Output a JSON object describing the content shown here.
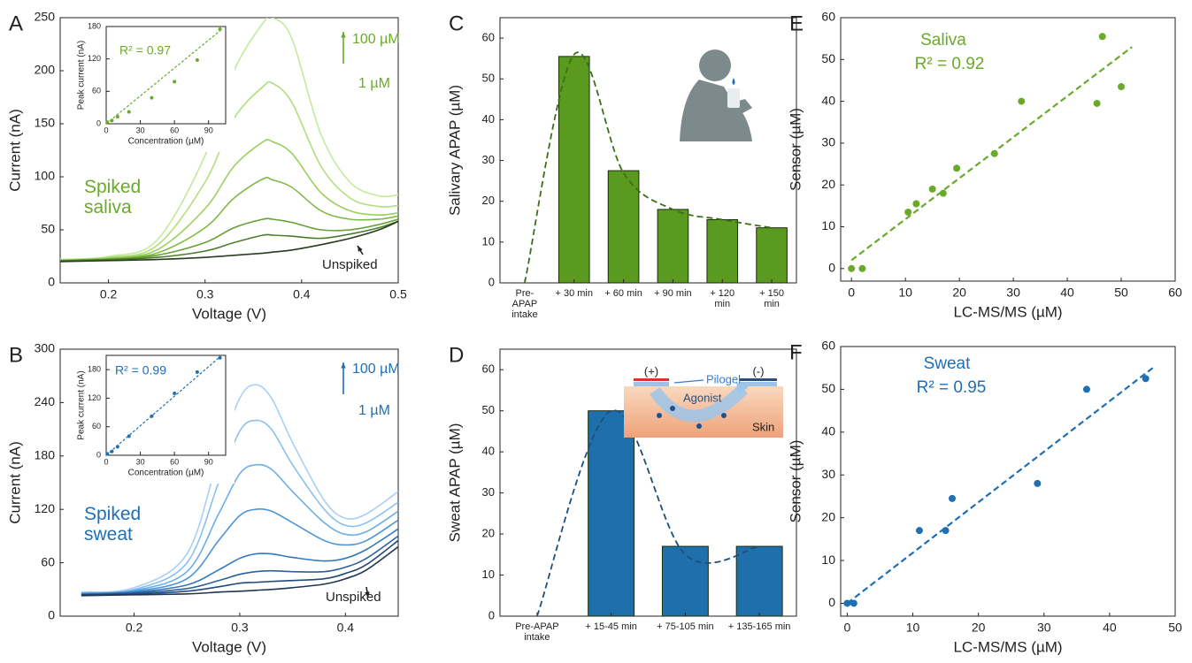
{
  "chart_data": [
    {
      "panel": "A",
      "type": "line",
      "xlabel": "Voltage (V)",
      "ylabel": "Current (nA)",
      "xlim": [
        0.15,
        0.5
      ],
      "ylim": [
        0,
        250
      ],
      "xticks": [
        0.2,
        0.3,
        0.4,
        0.5
      ],
      "yticks": [
        0,
        50,
        100,
        150,
        200,
        250
      ],
      "x": [
        0.15,
        0.2,
        0.25,
        0.3,
        0.33,
        0.36,
        0.37,
        0.39,
        0.42,
        0.45,
        0.48,
        0.5
      ],
      "series": [
        {
          "color": "#c6e89c",
          "values": [
            22,
            25,
            40,
            120,
            200,
            245,
            250,
            230,
            140,
            95,
            82,
            83
          ]
        },
        {
          "color": "#b2dd7c",
          "values": [
            22,
            24,
            35,
            95,
            155,
            185,
            188,
            170,
            110,
            80,
            72,
            73
          ]
        },
        {
          "color": "#9bcf5f",
          "values": [
            21,
            23,
            31,
            70,
            110,
            133,
            133,
            122,
            85,
            68,
            64,
            66
          ]
        },
        {
          "color": "#80ba45",
          "values": [
            21,
            23,
            28,
            52,
            80,
            98,
            97,
            90,
            68,
            60,
            60,
            63
          ]
        },
        {
          "color": "#66a036",
          "values": [
            21,
            22,
            26,
            38,
            52,
            60,
            60,
            57,
            50,
            50,
            55,
            60
          ]
        },
        {
          "color": "#4a7c2c",
          "values": [
            21,
            22,
            24,
            30,
            38,
            45,
            45,
            44,
            42,
            46,
            52,
            58
          ]
        },
        {
          "color": "#283c1e",
          "values": [
            20,
            21,
            22,
            24,
            26,
            28,
            29,
            31,
            36,
            42,
            50,
            58
          ]
        }
      ],
      "annotations": [
        "Spiked saliva",
        "100 µM",
        "1 µM",
        "Unspiked"
      ]
    },
    {
      "type": "scatter",
      "xlabel": "Concentration (µM)",
      "ylabel": "Peak current (nA)",
      "xlim": [
        0,
        105
      ],
      "ylim": [
        0,
        180
      ],
      "xticks": [
        0,
        30,
        60,
        90
      ],
      "yticks": [
        0,
        60,
        120,
        180
      ],
      "color": "#6aaa2a",
      "x": [
        1,
        5,
        10,
        20,
        40,
        60,
        80,
        100
      ],
      "values": [
        3,
        6,
        13,
        22,
        48,
        78,
        118,
        175
      ],
      "fit": {
        "x": [
          0,
          100
        ],
        "y": [
          0,
          172
        ]
      },
      "annotations": [
        "R² = 0.97"
      ]
    },
    {
      "panel": "B",
      "type": "line",
      "xlabel": "Voltage (V)",
      "ylabel": "Current (nA)",
      "xlim": [
        0.13,
        0.45
      ],
      "ylim": [
        0,
        300
      ],
      "xticks": [
        0.2,
        0.3,
        0.4
      ],
      "yticks": [
        0,
        60,
        120,
        180,
        240,
        300
      ],
      "x": [
        0.15,
        0.2,
        0.25,
        0.28,
        0.3,
        0.315,
        0.33,
        0.35,
        0.38,
        0.4,
        0.42,
        0.45
      ],
      "series": [
        {
          "color": "#a8cff5",
          "values": [
            27,
            32,
            70,
            180,
            245,
            260,
            245,
            195,
            130,
            110,
            115,
            140
          ]
        },
        {
          "color": "#8ac0f0",
          "values": [
            26,
            30,
            60,
            150,
            208,
            220,
            210,
            170,
            120,
            102,
            105,
            128
          ]
        },
        {
          "color": "#6aaeea",
          "values": [
            26,
            29,
            50,
            115,
            160,
            170,
            165,
            140,
            105,
            92,
            95,
            118
          ]
        },
        {
          "color": "#4c95d8",
          "values": [
            25,
            28,
            42,
            85,
            113,
            120,
            118,
            105,
            85,
            80,
            85,
            108
          ]
        },
        {
          "color": "#3478bc",
          "values": [
            25,
            27,
            35,
            52,
            65,
            70,
            70,
            66,
            62,
            65,
            75,
            98
          ]
        },
        {
          "color": "#2a5f9c",
          "values": [
            24,
            26,
            31,
            40,
            47,
            50,
            51,
            50,
            50,
            55,
            65,
            90
          ]
        },
        {
          "color": "#23497a",
          "values": [
            24,
            25,
            28,
            33,
            37,
            38,
            39,
            40,
            42,
            48,
            58,
            85
          ]
        },
        {
          "color": "#1f3550",
          "values": [
            23,
            24,
            25,
            27,
            28,
            29,
            30,
            32,
            36,
            42,
            52,
            78
          ]
        }
      ],
      "annotations": [
        "Spiked sweat",
        "100 µM",
        "1 µM",
        "Unspiked"
      ]
    },
    {
      "type": "scatter",
      "xlabel": "Concentration (µM)",
      "ylabel": "Peak current (nA)",
      "xlim": [
        0,
        105
      ],
      "ylim": [
        0,
        210
      ],
      "xticks": [
        0,
        30,
        60,
        90
      ],
      "yticks": [
        0,
        60,
        120,
        180
      ],
      "color": "#1f6fb4",
      "x": [
        1,
        5,
        10,
        20,
        40,
        60,
        80,
        100
      ],
      "values": [
        3,
        8,
        18,
        40,
        82,
        130,
        175,
        205
      ],
      "fit": {
        "x": [
          0,
          100
        ],
        "y": [
          0,
          207
        ]
      },
      "annotations": [
        "R² = 0.99"
      ]
    },
    {
      "panel": "C",
      "type": "bar",
      "ylabel": "Salivary APAP (µM)",
      "ylim": [
        0,
        65
      ],
      "yticks": [
        0,
        10,
        20,
        30,
        40,
        50,
        60
      ],
      "categories": [
        "Pre-APAP intake",
        "+ 30 min",
        "+ 60 min",
        "+ 90 min",
        "+ 120 min",
        "+ 150 min"
      ],
      "values": [
        0,
        55.5,
        27.5,
        18,
        15.5,
        13.5
      ],
      "color": "#5a9a1e",
      "trend": [
        0,
        56,
        27,
        18,
        15.5,
        13.5
      ]
    },
    {
      "panel": "D",
      "type": "bar",
      "ylabel": "Sweat APAP (µM)",
      "ylim": [
        0,
        65
      ],
      "yticks": [
        0,
        10,
        20,
        30,
        40,
        50,
        60
      ],
      "categories": [
        "Pre-APAP intake",
        "+ 15-45 min",
        "+ 75-105 min",
        "+ 135-165 min"
      ],
      "values": [
        0,
        50,
        17,
        17
      ],
      "color": "#1f6fad",
      "trend": [
        0,
        50,
        15,
        17
      ],
      "diagram": {
        "plus": "(+)",
        "minus": "(-)",
        "gel": "Pilogel",
        "agonist": "Agonist",
        "skin": "Skin"
      }
    },
    {
      "panel": "E",
      "type": "scatter",
      "xlabel": "LC-MS/MS (µM)",
      "ylabel": "Sensor (µM)",
      "xlim": [
        -2,
        60
      ],
      "ylim": [
        -3,
        60
      ],
      "xticks": [
        0,
        10,
        20,
        30,
        40,
        50,
        60
      ],
      "yticks": [
        0,
        10,
        20,
        30,
        40,
        50,
        60
      ],
      "color": "#6aaa2a",
      "x": [
        0,
        2,
        10.5,
        12,
        15,
        17,
        19.5,
        26.5,
        31.5,
        45.5,
        46.5,
        50
      ],
      "values": [
        0,
        0,
        13.5,
        15.5,
        19,
        18,
        24,
        27.5,
        40,
        39.5,
        55.5,
        43.5
      ],
      "fit": {
        "x": [
          0,
          52
        ],
        "y": [
          2,
          53
        ]
      },
      "annotations": [
        "Saliva",
        "R² = 0.92"
      ]
    },
    {
      "panel": "F",
      "type": "scatter",
      "xlabel": "LC-MS/MS (µM)",
      "ylabel": "Sensor (µM)",
      "xlim": [
        -1,
        50
      ],
      "ylim": [
        -3,
        60
      ],
      "xticks": [
        0,
        10,
        20,
        30,
        40,
        50
      ],
      "yticks": [
        0,
        10,
        20,
        30,
        40,
        50,
        60
      ],
      "color": "#1f6fb4",
      "x": [
        0,
        1,
        11,
        15,
        16,
        29,
        36.5,
        45.5
      ],
      "values": [
        0,
        0,
        17,
        17,
        24.5,
        28,
        50,
        52.5
      ],
      "fit": {
        "x": [
          0,
          47
        ],
        "y": [
          0,
          55.5
        ]
      },
      "annotations": [
        "Sweat",
        "R² = 0.95"
      ]
    }
  ]
}
